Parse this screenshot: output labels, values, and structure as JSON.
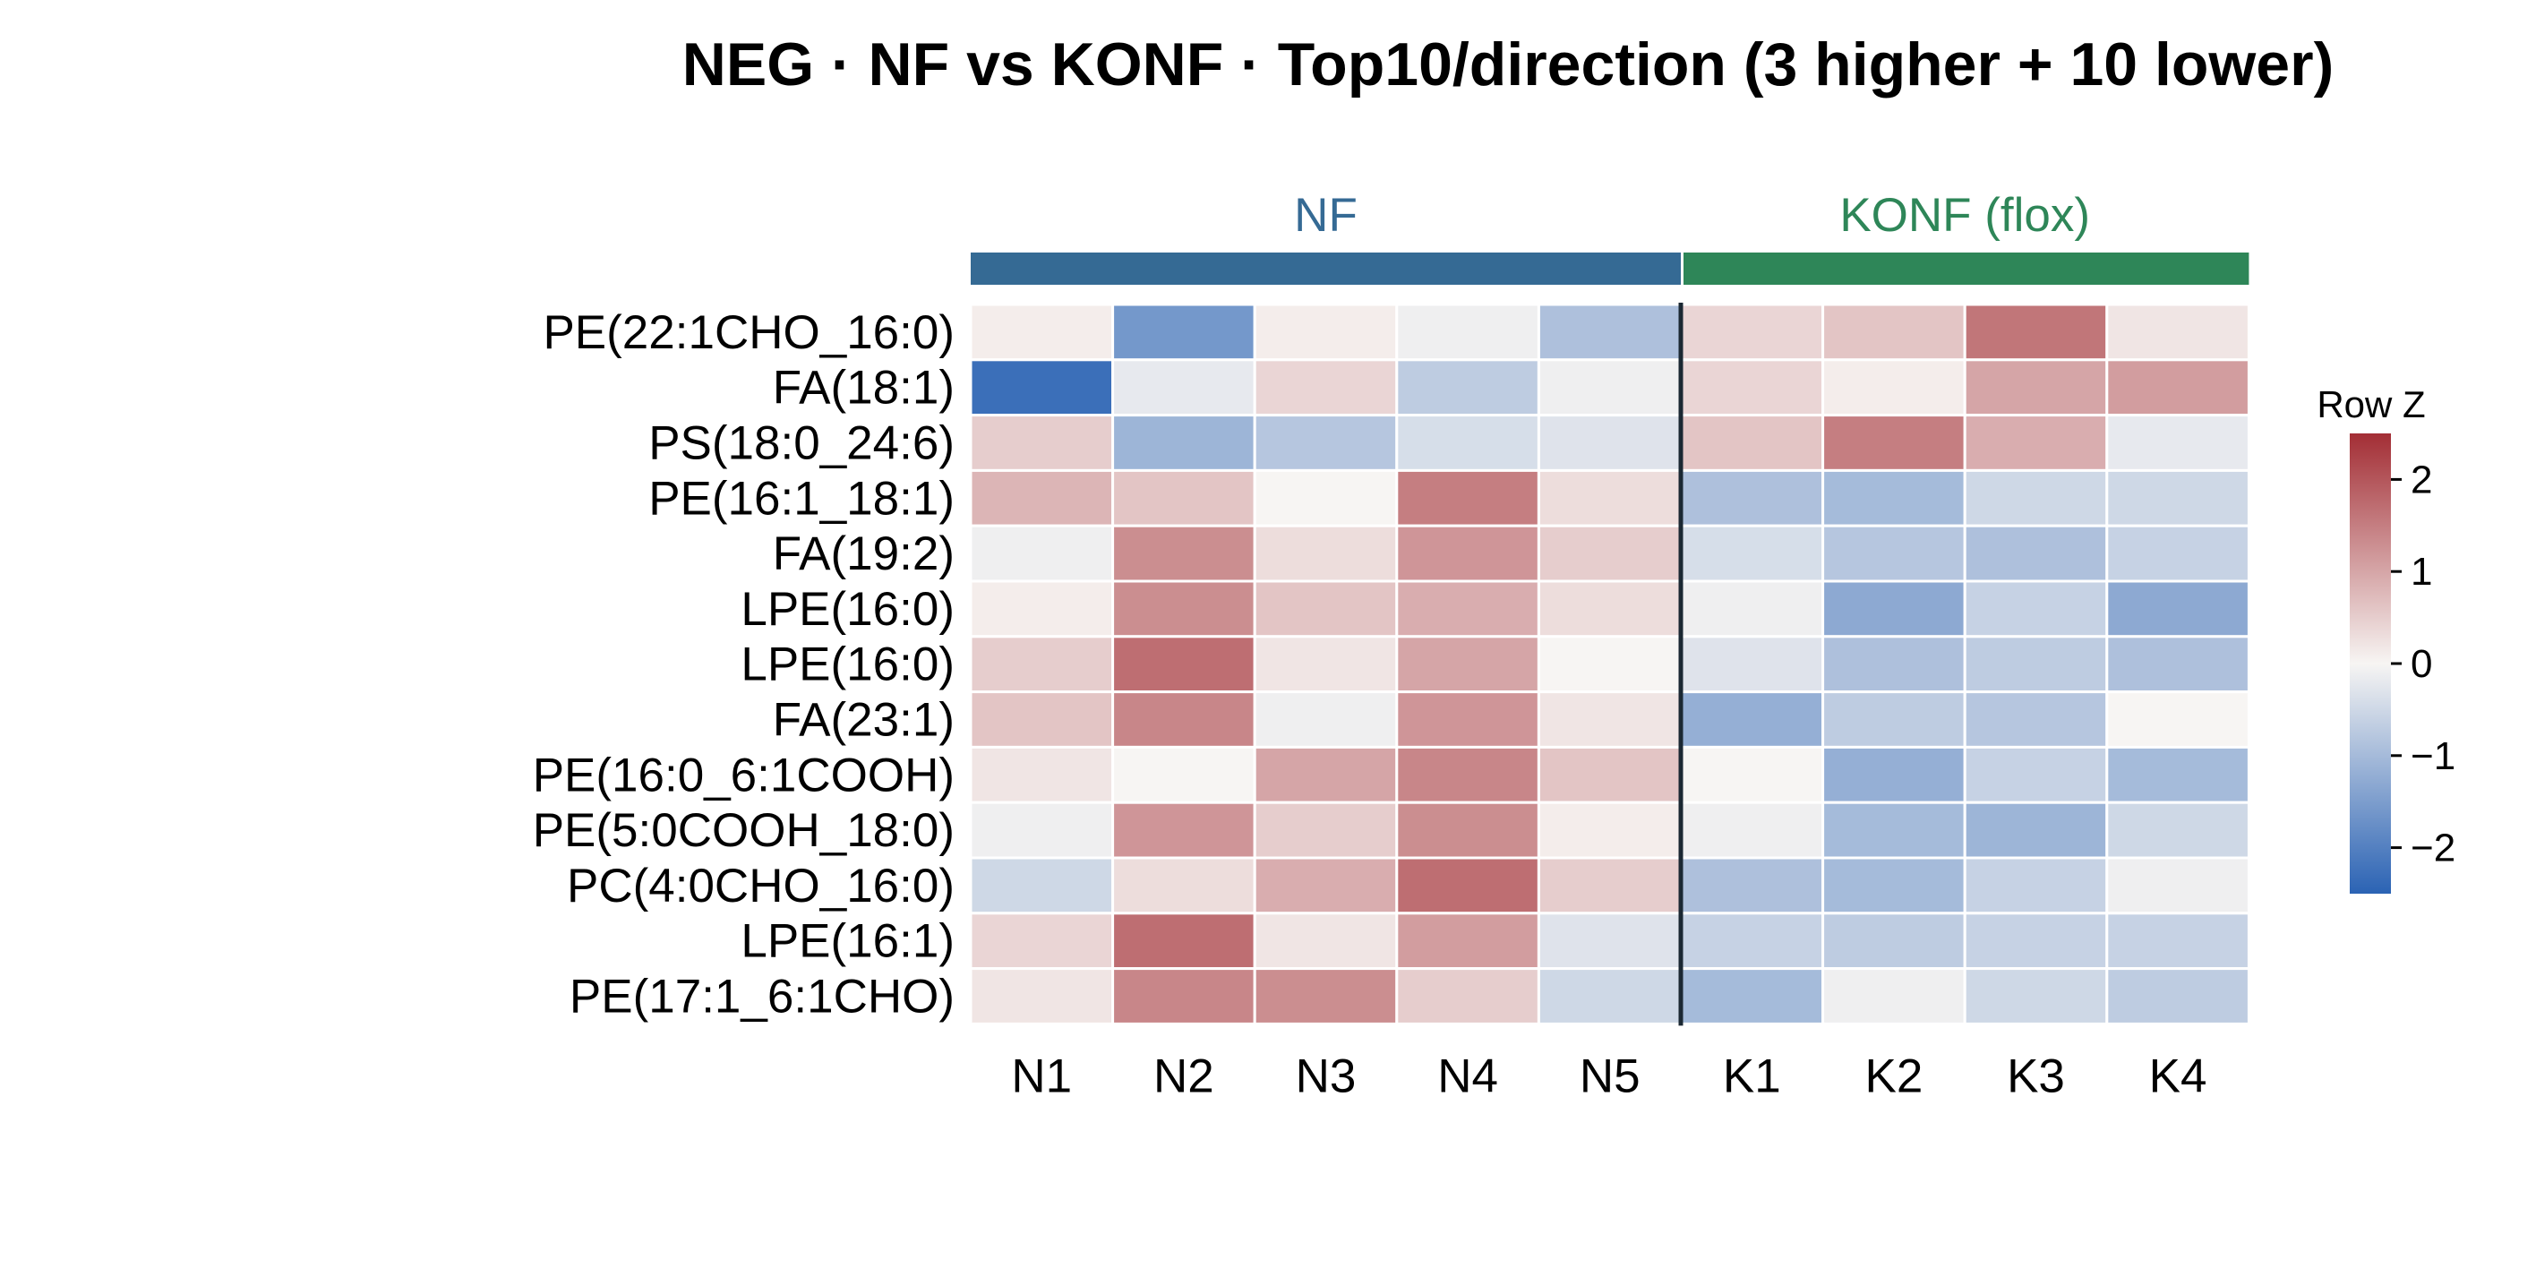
{
  "chart_data": {
    "type": "heatmap",
    "title": "NEG · NF vs KONF · Top10/direction (3 higher + 10 lower)",
    "groups": [
      {
        "label": "NF",
        "color": "#356a94",
        "columns": [
          "N1",
          "N2",
          "N3",
          "N4",
          "N5"
        ]
      },
      {
        "label": "KONF (flox)",
        "color": "#2e8658",
        "columns": [
          "K1",
          "K2",
          "K3",
          "K4"
        ]
      }
    ],
    "columns": [
      "N1",
      "N2",
      "N3",
      "N4",
      "N5",
      "K1",
      "K2",
      "K3",
      "K4"
    ],
    "rows": [
      "PE(22:1CHO_16:0)",
      "FA(18:1)",
      "PS(18:0_24:6)",
      "PE(16:1_18:1)",
      "FA(19:2)",
      "LPE(16:0)",
      "LPE(16:0)",
      "FA(23:1)",
      "PE(16:0_6:1COOH)",
      "PE(5:0COOH_18:0)",
      "PC(4:0CHO_16:0)",
      "LPE(16:1)",
      "PE(17:1_6:1CHO)"
    ],
    "values": [
      [
        0.1,
        -1.6,
        0.1,
        -0.1,
        -0.9,
        0.4,
        0.6,
        1.6,
        0.2
      ],
      [
        -2.3,
        -0.2,
        0.4,
        -0.7,
        -0.1,
        0.4,
        0.1,
        1.0,
        1.1
      ],
      [
        0.5,
        -1.1,
        -0.8,
        -0.4,
        -0.3,
        0.6,
        1.5,
        0.9,
        -0.2
      ],
      [
        0.8,
        0.6,
        0.0,
        1.5,
        0.3,
        -0.9,
        -1.0,
        -0.5,
        -0.5
      ],
      [
        -0.1,
        1.3,
        0.3,
        1.2,
        0.5,
        -0.4,
        -0.8,
        -0.9,
        -0.6
      ],
      [
        0.1,
        1.3,
        0.6,
        0.9,
        0.3,
        -0.1,
        -1.3,
        -0.6,
        -1.3
      ],
      [
        0.5,
        1.7,
        0.2,
        1.0,
        0.0,
        -0.3,
        -0.9,
        -0.7,
        -0.9
      ],
      [
        0.6,
        1.4,
        -0.1,
        1.2,
        0.2,
        -1.2,
        -0.7,
        -0.8,
        0.0
      ],
      [
        0.2,
        0.0,
        1.0,
        1.4,
        0.6,
        0.0,
        -1.2,
        -0.6,
        -1.0
      ],
      [
        -0.1,
        1.2,
        0.5,
        1.3,
        0.1,
        -0.1,
        -1.0,
        -1.1,
        -0.5
      ],
      [
        -0.5,
        0.3,
        0.9,
        1.7,
        0.5,
        -0.9,
        -1.0,
        -0.6,
        -0.1
      ],
      [
        0.4,
        1.7,
        0.2,
        1.1,
        -0.3,
        -0.6,
        -0.7,
        -0.6,
        -0.6
      ],
      [
        0.2,
        1.4,
        1.3,
        0.5,
        -0.5,
        -1.0,
        -0.1,
        -0.5,
        -0.7
      ]
    ],
    "colorbar": {
      "label": "Row Z",
      "range": [
        -2.5,
        2.5
      ],
      "ticks": [
        2,
        1,
        0,
        -1,
        -2
      ],
      "tick_labels": [
        "2",
        "1",
        "0",
        "−1",
        "−2"
      ],
      "colors": {
        "low": "#2b63b4",
        "mid": "#f7f5f3",
        "high": "#a32e35"
      }
    },
    "group_divider": {
      "after_column": "N5",
      "color": "#1b2833"
    },
    "grid": false,
    "legend_placement": "right"
  }
}
